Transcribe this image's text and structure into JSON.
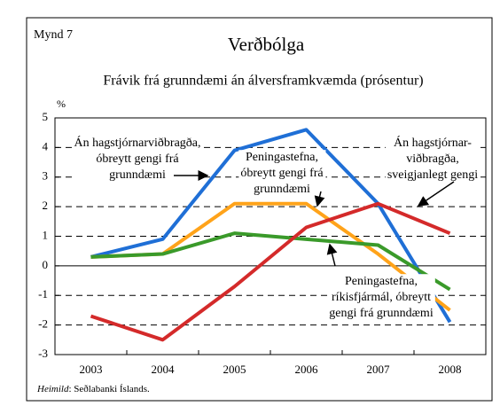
{
  "chart_data": {
    "type": "line",
    "label": "Mynd 7",
    "title": "Verðbólga",
    "subtitle": "Frávik frá grunndæmi án álversframkvæmda (prósentur)",
    "y_unit": "%",
    "categories": [
      "2003",
      "2004",
      "2005",
      "2006",
      "2007",
      "2008"
    ],
    "ylim": [
      -3,
      5
    ],
    "yticks": [
      -3,
      -2,
      -1,
      0,
      1,
      2,
      3,
      4,
      5
    ],
    "grid": true,
    "series": [
      {
        "label": [
          "Án hagstjórnarviðbragða,",
          "óbreytt gengi frá",
          "grunndæmi"
        ],
        "color": "#1f6fd6",
        "values": [
          0.3,
          0.9,
          3.9,
          4.6,
          2.1,
          -1.9
        ]
      },
      {
        "label": [
          "Peningastefna,",
          "óbreytt gengi frá",
          "grunndæmi"
        ],
        "color": "#ffa31a",
        "values": [
          0.3,
          0.4,
          2.1,
          2.1,
          0.4,
          -1.5
        ]
      },
      {
        "label": [
          "Peningastefna,",
          "ríkisfjármál, óbreytt",
          "gengi frá grunndæmi"
        ],
        "color": "#3a9a2a",
        "values": [
          0.3,
          0.4,
          1.1,
          0.9,
          0.7,
          -0.8
        ]
      },
      {
        "label": [
          "Án hagstjórnar-",
          "viðbragða,",
          "sveigjanlegt gengi"
        ],
        "color": "#d42a2a",
        "values": [
          -1.7,
          -2.5,
          -0.7,
          1.3,
          2.1,
          1.1
        ]
      }
    ],
    "source_label": "Heimild",
    "source_text": ": Seðlabanki Íslands."
  }
}
